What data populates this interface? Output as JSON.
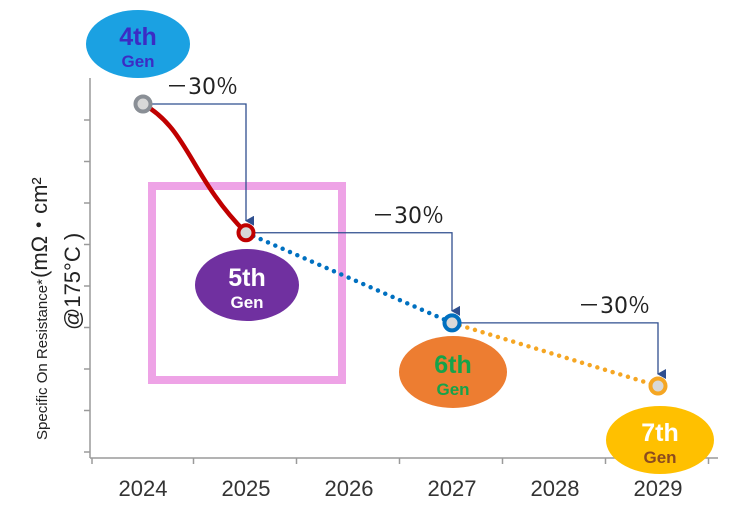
{
  "chart_data": {
    "type": "line",
    "ylabel": {
      "main": "Specific On Resistance*",
      "unit": "(mΩ・cm²",
      "condition": "@175°C )"
    },
    "x_ticks": [
      "2024",
      "2025",
      "2026",
      "2027",
      "2028",
      "2029"
    ],
    "points": [
      {
        "x": "2024",
        "relative_value": 1.0,
        "label_num": "4th",
        "label_word": "Gen",
        "color": "#1ba1e2"
      },
      {
        "x": "2025",
        "relative_value": 0.7,
        "label_num": "5th",
        "label_word": "Gen",
        "color": "#7030a0"
      },
      {
        "x": "2027",
        "relative_value": 0.49,
        "label_num": "6th",
        "label_word": "Gen",
        "color": "#ed7d31"
      },
      {
        "x": "2029",
        "relative_value": 0.343,
        "label_num": "7th",
        "label_word": "Gen",
        "color": "#ffc000"
      }
    ],
    "reductions": [
      "－30％",
      "－30％",
      "－30％"
    ],
    "segments": [
      {
        "from": 0,
        "to": 1,
        "style": "solid",
        "color": "#c00000"
      },
      {
        "from": 1,
        "to": 2,
        "style": "dotted",
        "color": "#0070c0"
      },
      {
        "from": 2,
        "to": 3,
        "style": "dotted",
        "color": "#f5a623"
      }
    ],
    "highlight": {
      "x_from": "2024",
      "x_to": "2026",
      "color": "#eea3e6"
    },
    "grid": false
  }
}
